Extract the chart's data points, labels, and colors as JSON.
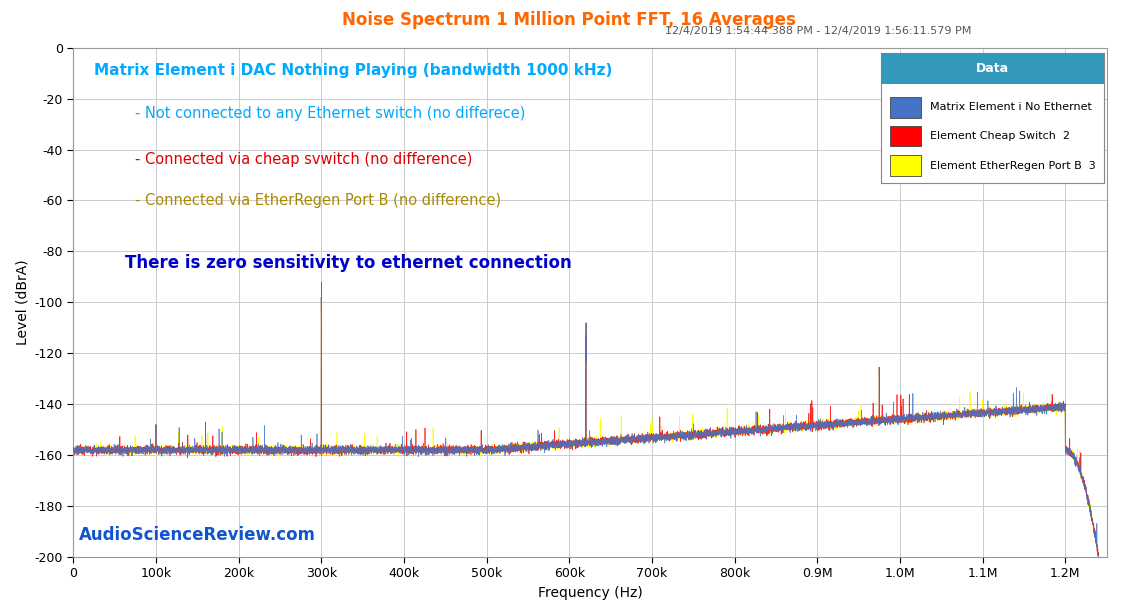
{
  "title": "Noise Spectrum 1 Million Point FFT, 16 Averages",
  "subtitle": "12/4/2019 1:54:44.388 PM - 12/4/2019 1:56:11.579 PM",
  "title_color": "#FF6600",
  "subtitle_color": "#555555",
  "xlabel": "Frequency (Hz)",
  "ylabel": "Level (dBrA)",
  "xlim": [
    0,
    1250000
  ],
  "ylim": [
    -200,
    0
  ],
  "yticks": [
    0,
    -20,
    -40,
    -60,
    -80,
    -100,
    -120,
    -140,
    -160,
    -180,
    -200
  ],
  "xtick_labels": [
    "0",
    "100k",
    "200k",
    "300k",
    "400k",
    "500k",
    "600k",
    "700k",
    "800k",
    "0.9M",
    "1.0M",
    "1.1M",
    "1.2M"
  ],
  "xtick_vals": [
    0,
    100000,
    200000,
    300000,
    400000,
    500000,
    600000,
    700000,
    800000,
    900000,
    1000000,
    1100000,
    1200000
  ],
  "background_color": "#ffffff",
  "plot_bg_color": "#ffffff",
  "grid_color": "#cccccc",
  "annotation1": "Matrix Element i DAC Nothing Playing (bandwidth 1000 kHz)",
  "annotation1_color": "#00AAFF",
  "annotation2": "- Not connected to any Ethernet switch (no differece)",
  "annotation2_color": "#00AAFF",
  "annotation3": "- Connected via cheap svwitch (no difference)",
  "annotation3_color": "#DD0000",
  "annotation4": "- Connected via EtherRegen Port B (no difference)",
  "annotation4_color": "#AA8800",
  "annotation5": "There is zero sensitivity to ethernet connection",
  "annotation5_color": "#0000CC",
  "watermark": "AudioScienceReview.com",
  "watermark_color": "#1155CC",
  "legend_title": "Data",
  "legend_title_bg": "#3399BB",
  "legend_labels": [
    "Matrix Element i No Ethernet",
    "Element Cheap Switch  2",
    "Element EtherRegen Port B  3"
  ],
  "legend_colors": [
    "#4472C4",
    "#FF0000",
    "#FFFF00"
  ],
  "line_colors": [
    "#4472C4",
    "#FF0000",
    "#FFFF00"
  ],
  "noise_floor": -158,
  "spike1_x": 300000,
  "spike1_y": -110,
  "spike2_x": 620000,
  "spike2_y": -126,
  "spike3_x": 975000,
  "spike3_y": -141,
  "rolloff_start": 1195000
}
